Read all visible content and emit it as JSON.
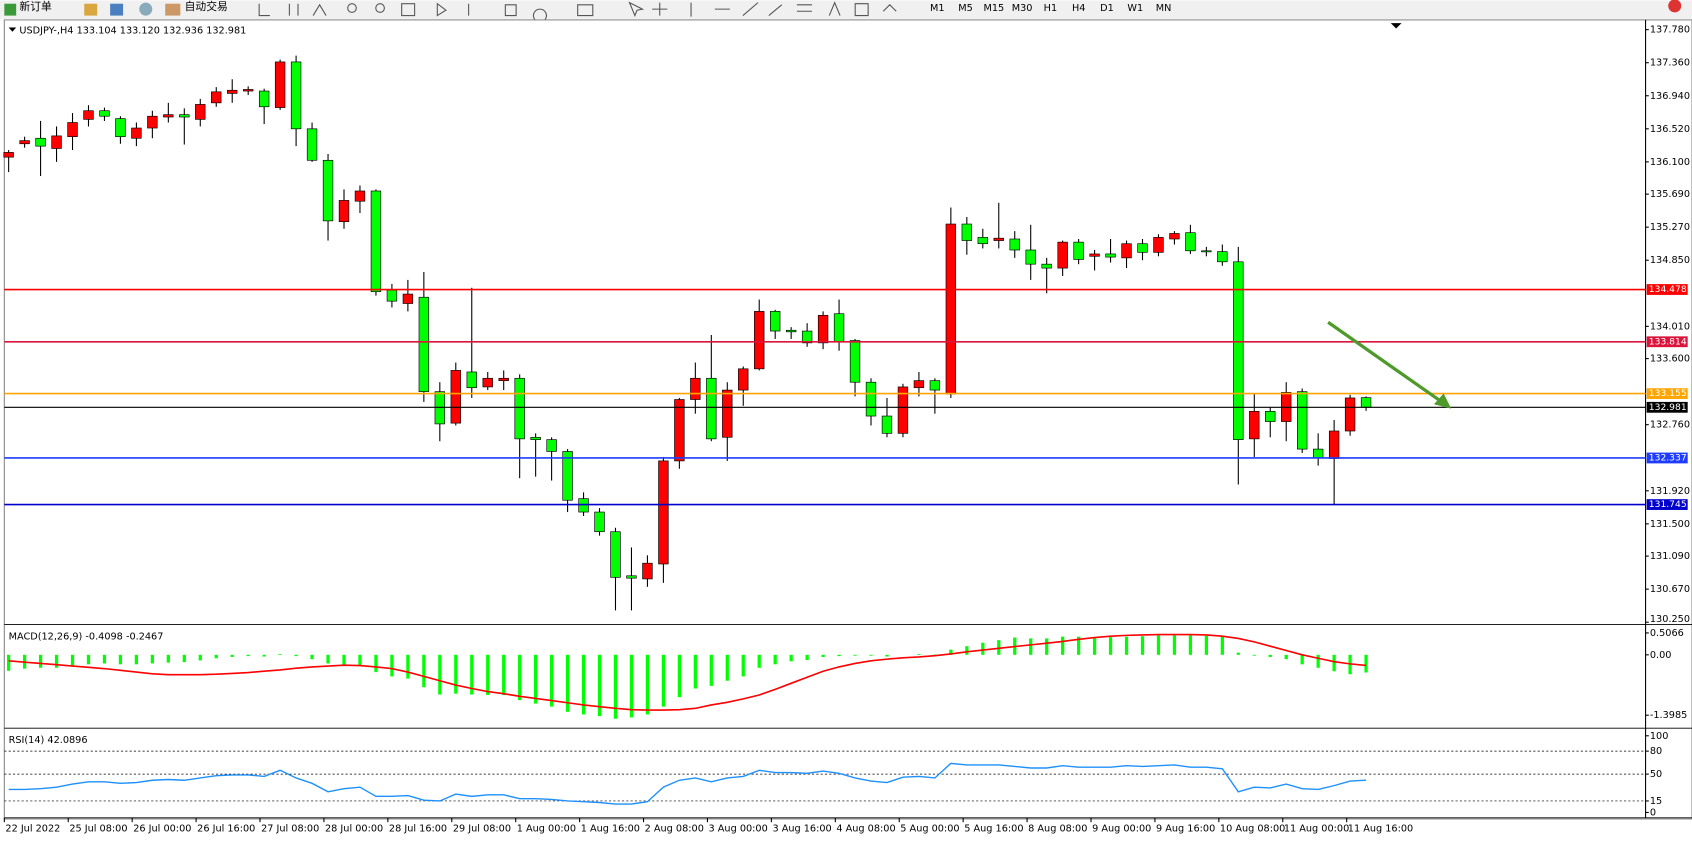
{
  "toolbar": {
    "new_order": "新订单",
    "auto_trading": "自动交易",
    "timeframes": [
      "M1",
      "M5",
      "M15",
      "M30",
      "H1",
      "H4",
      "D1",
      "W1",
      "MN"
    ]
  },
  "chart_data": [
    {
      "type": "candlestick",
      "title": "USDJPY-,H4  133.104 133.120 132.936 132.981",
      "up_color": "#ff0000",
      "down_color": "#00ff00",
      "ohlc": [
        [
          136.16,
          136.25,
          135.97,
          136.22
        ],
        [
          136.33,
          136.42,
          136.28,
          136.37
        ],
        [
          136.4,
          136.62,
          135.92,
          136.3
        ],
        [
          136.27,
          136.55,
          136.1,
          136.43
        ],
        [
          136.42,
          136.72,
          136.25,
          136.6
        ],
        [
          136.64,
          136.82,
          136.55,
          136.75
        ],
        [
          136.75,
          136.79,
          136.62,
          136.68
        ],
        [
          136.65,
          136.68,
          136.33,
          136.42
        ],
        [
          136.4,
          136.6,
          136.3,
          136.53
        ],
        [
          136.53,
          136.75,
          136.4,
          136.68
        ],
        [
          136.67,
          136.85,
          136.6,
          136.7
        ],
        [
          136.7,
          136.78,
          136.32,
          136.67
        ],
        [
          136.64,
          136.9,
          136.55,
          136.83
        ],
        [
          136.85,
          137.05,
          136.8,
          136.99
        ],
        [
          136.97,
          137.15,
          136.85,
          137.01
        ],
        [
          137,
          137.06,
          136.95,
          137.02
        ],
        [
          137,
          137.03,
          136.58,
          136.8
        ],
        [
          136.79,
          137.4,
          136.76,
          137.37
        ],
        [
          137.37,
          137.45,
          136.3,
          136.52
        ],
        [
          136.52,
          136.6,
          136.1,
          136.12
        ],
        [
          136.12,
          136.2,
          135.1,
          135.35
        ],
        [
          135.34,
          135.75,
          135.25,
          135.61
        ],
        [
          135.6,
          135.8,
          135.45,
          135.73
        ],
        [
          135.73,
          135.75,
          134.4,
          134.45
        ],
        [
          134.47,
          134.55,
          134.25,
          134.33
        ],
        [
          134.3,
          134.6,
          134.2,
          134.42
        ],
        [
          134.38,
          134.7,
          133.05,
          133.18
        ],
        [
          133.18,
          133.3,
          132.55,
          132.77
        ],
        [
          132.78,
          133.55,
          132.75,
          133.45
        ],
        [
          133.43,
          134.5,
          133.1,
          133.23
        ],
        [
          133.24,
          133.43,
          133.2,
          133.35
        ],
        [
          133.32,
          133.45,
          133.2,
          133.35
        ],
        [
          133.35,
          133.4,
          132.08,
          132.58
        ],
        [
          132.6,
          132.65,
          132.1,
          132.57
        ],
        [
          132.57,
          132.6,
          132.05,
          132.42
        ],
        [
          132.42,
          132.45,
          131.65,
          131.8
        ],
        [
          131.82,
          131.9,
          131.6,
          131.65
        ],
        [
          131.65,
          131.7,
          131.35,
          131.4
        ],
        [
          131.4,
          131.45,
          130.4,
          130.82
        ],
        [
          130.84,
          131.2,
          130.4,
          130.81
        ],
        [
          130.8,
          131.1,
          130.7,
          131
        ],
        [
          130.99,
          132.35,
          130.75,
          132.3
        ],
        [
          132.3,
          133.1,
          132.2,
          133.08
        ],
        [
          133.08,
          133.55,
          132.9,
          133.35
        ],
        [
          133.35,
          133.9,
          132.55,
          132.58
        ],
        [
          132.6,
          133.3,
          132.3,
          133.2
        ],
        [
          133.2,
          133.5,
          133,
          133.47
        ],
        [
          133.47,
          134.35,
          133.45,
          134.2
        ],
        [
          134.2,
          134.22,
          133.85,
          133.95
        ],
        [
          133.96,
          134,
          133.85,
          133.94
        ],
        [
          133.95,
          134.05,
          133.75,
          133.8
        ],
        [
          133.8,
          134.2,
          133.72,
          134.15
        ],
        [
          134.17,
          134.35,
          133.7,
          133.82
        ],
        [
          133.83,
          133.85,
          133.12,
          133.3
        ],
        [
          133.3,
          133.35,
          132.75,
          132.87
        ],
        [
          132.87,
          133.1,
          132.6,
          132.65
        ],
        [
          132.65,
          133.28,
          132.6,
          133.24
        ],
        [
          133.23,
          133.43,
          133.12,
          133.32
        ],
        [
          133.32,
          133.35,
          132.9,
          133.2
        ],
        [
          133.15,
          135.52,
          133.1,
          135.31
        ],
        [
          135.31,
          135.4,
          134.92,
          135.1
        ],
        [
          135.14,
          135.25,
          135,
          135.06
        ],
        [
          135.1,
          135.58,
          135,
          135.13
        ],
        [
          135.12,
          135.22,
          134.88,
          134.98
        ],
        [
          134.98,
          135.3,
          134.6,
          134.8
        ],
        [
          134.8,
          134.88,
          134.43,
          134.75
        ],
        [
          134.75,
          135.1,
          134.65,
          135.08
        ],
        [
          135.08,
          135.12,
          134.8,
          134.86
        ],
        [
          134.9,
          134.98,
          134.72,
          134.93
        ],
        [
          134.93,
          135.12,
          134.82,
          134.89
        ],
        [
          134.88,
          135.1,
          134.75,
          135.06
        ],
        [
          135.06,
          135.12,
          134.85,
          134.95
        ],
        [
          134.95,
          135.18,
          134.9,
          135.14
        ],
        [
          135.12,
          135.22,
          135.05,
          135.19
        ],
        [
          135.2,
          135.3,
          134.93,
          134.97
        ],
        [
          134.97,
          135.02,
          134.9,
          134.96
        ],
        [
          134.96,
          135.05,
          134.78,
          134.83
        ],
        [
          134.83,
          135.02,
          132,
          132.57
        ],
        [
          132.58,
          133.15,
          132.35,
          132.93
        ],
        [
          132.93,
          132.98,
          132.6,
          132.8
        ],
        [
          132.8,
          133.3,
          132.55,
          133.17
        ],
        [
          133.18,
          133.22,
          132.4,
          132.45
        ],
        [
          132.45,
          132.65,
          132.24,
          132.34
        ],
        [
          132.33,
          132.82,
          131.75,
          132.68
        ],
        [
          132.68,
          133.14,
          132.62,
          133.1
        ],
        [
          133.104,
          133.12,
          132.936,
          132.981
        ]
      ],
      "ylim": [
        130.22,
        137.904
      ],
      "yticks": [
        {
          "value": 137.78,
          "label": "137.780"
        },
        {
          "value": 137.36,
          "label": "137.360"
        },
        {
          "value": 136.94,
          "label": "136.940"
        },
        {
          "value": 136.52,
          "label": "136.520"
        },
        {
          "value": 136.1,
          "label": "136.100"
        },
        {
          "value": 135.69,
          "label": "135.690"
        },
        {
          "value": 135.27,
          "label": "135.270"
        },
        {
          "value": 134.85,
          "label": "134.850"
        },
        {
          "value": 134.01,
          "label": "134.010"
        },
        {
          "value": 133.6,
          "label": "133.600"
        },
        {
          "value": 132.76,
          "label": "132.760"
        },
        {
          "value": 131.92,
          "label": "131.920"
        },
        {
          "value": 131.5,
          "label": "131.500"
        },
        {
          "value": 131.09,
          "label": "131.090"
        },
        {
          "value": 130.67,
          "label": "130.670"
        },
        {
          "value": 130.25,
          "label": "130.250"
        }
      ],
      "levels": [
        {
          "value": 134.478,
          "color": "#ff0000"
        },
        {
          "value": 133.814,
          "color": "#dc143c"
        },
        {
          "value": 133.155,
          "color": "#ffa500"
        },
        {
          "value": 132.981,
          "color": "#000000"
        },
        {
          "value": 132.337,
          "color": "#1e3cff"
        },
        {
          "value": 131.745,
          "color": "#0000cd"
        }
      ],
      "x_labels": [
        "22 Jul 2022",
        "25 Jul 08:00",
        "26 Jul 00:00",
        "26 Jul 16:00",
        "27 Jul 08:00",
        "28 Jul 00:00",
        "28 Jul 16:00",
        "29 Jul 08:00",
        "1 Aug 00:00",
        "1 Aug 16:00",
        "2 Aug 08:00",
        "3 Aug 00:00",
        "3 Aug 16:00",
        "4 Aug 08:00",
        "5 Aug 00:00",
        "5 Aug 16:00",
        "8 Aug 08:00",
        "9 Aug 00:00",
        "9 Aug 16:00",
        "10 Aug 08:00",
        "11 Aug 00:00",
        "11 Aug 16:00"
      ]
    },
    {
      "type": "macd",
      "title": "MACD(12,26,9) -0.4098 -0.2467",
      "ylim": [
        -1.7,
        0.675
      ],
      "yticks": [
        0.5066,
        {
          "value": 0,
          "label": "0.00"
        },
        -1.3985
      ],
      "series": [
        {
          "color": "#00ff00",
          "values": [
            -0.37,
            -0.32,
            -0.3,
            -0.3,
            -0.27,
            -0.22,
            -0.2,
            -0.22,
            -0.22,
            -0.2,
            -0.18,
            -0.17,
            -0.13,
            -0.08,
            -0.05,
            -0.03,
            -0.04,
            0.02,
            -0.03,
            -0.1,
            -0.2,
            -0.24,
            -0.26,
            -0.4,
            -0.5,
            -0.55,
            -0.75,
            -0.92,
            -0.9,
            -0.92,
            -0.93,
            -0.93,
            -1.05,
            -1.13,
            -1.2,
            -1.32,
            -1.38,
            -1.42,
            -1.48,
            -1.45,
            -1.38,
            -1.2,
            -0.98,
            -0.78,
            -0.72,
            -0.6,
            -0.5,
            -0.3,
            -0.22,
            -0.15,
            -0.12,
            -0.05,
            -0.03,
            -0.02,
            -0.02,
            -0.04,
            0,
            0.02,
            0.01,
            0.12,
            0.2,
            0.28,
            0.34,
            0.4,
            0.38,
            0.38,
            0.42,
            0.42,
            0.41,
            0.41,
            0.42,
            0.43,
            0.45,
            0.45,
            0.45,
            0.44,
            0.42,
            0.05,
            -0.02,
            -0.05,
            -0.1,
            -0.22,
            -0.3,
            -0.38,
            -0.45,
            -0.4098
          ]
        },
        {
          "color": "#ff0000",
          "values": [
            -0.14,
            -0.17,
            -0.2,
            -0.23,
            -0.26,
            -0.29,
            -0.32,
            -0.36,
            -0.4,
            -0.44,
            -0.46,
            -0.46,
            -0.46,
            -0.45,
            -0.43,
            -0.41,
            -0.38,
            -0.35,
            -0.31,
            -0.28,
            -0.26,
            -0.24,
            -0.25,
            -0.28,
            -0.32,
            -0.4,
            -0.5,
            -0.6,
            -0.7,
            -0.78,
            -0.85,
            -0.9,
            -0.96,
            -1.01,
            -1.06,
            -1.11,
            -1.16,
            -1.2,
            -1.24,
            -1.27,
            -1.28,
            -1.28,
            -1.27,
            -1.24,
            -1.16,
            -1.1,
            -1.02,
            -0.93,
            -0.8,
            -0.66,
            -0.52,
            -0.38,
            -0.28,
            -0.2,
            -0.14,
            -0.1,
            -0.07,
            -0.05,
            -0.02,
            0.02,
            0.07,
            0.11,
            0.15,
            0.19,
            0.23,
            0.27,
            0.31,
            0.36,
            0.4,
            0.43,
            0.45,
            0.46,
            0.47,
            0.47,
            0.47,
            0.46,
            0.43,
            0.38,
            0.3,
            0.2,
            0.1,
            0,
            -0.08,
            -0.16,
            -0.21,
            -0.2467
          ]
        }
      ]
    },
    {
      "type": "line",
      "title": "RSI(14) 42.0896",
      "color": "#1e90ff",
      "ylim": [
        0,
        100
      ],
      "yticks": [
        100,
        80,
        50,
        15,
        0
      ],
      "grid": true,
      "values": [
        30,
        30,
        31,
        33,
        37,
        40,
        40,
        38,
        39,
        42,
        43,
        42,
        45,
        48,
        49,
        49,
        47,
        55,
        45,
        38,
        27,
        31,
        33,
        21,
        21,
        22,
        16,
        15,
        24,
        21,
        23,
        23,
        18,
        18,
        17,
        15,
        14,
        13,
        11,
        11,
        14,
        33,
        42,
        45,
        40,
        45,
        47,
        55,
        52,
        52,
        51,
        54,
        51,
        45,
        41,
        39,
        46,
        47,
        45,
        64,
        62,
        62,
        62,
        60,
        58,
        58,
        61,
        59,
        59,
        59,
        61,
        60,
        61,
        62,
        59,
        59,
        57,
        27,
        33,
        32,
        37,
        31,
        30,
        35,
        41,
        42.0896
      ]
    }
  ]
}
